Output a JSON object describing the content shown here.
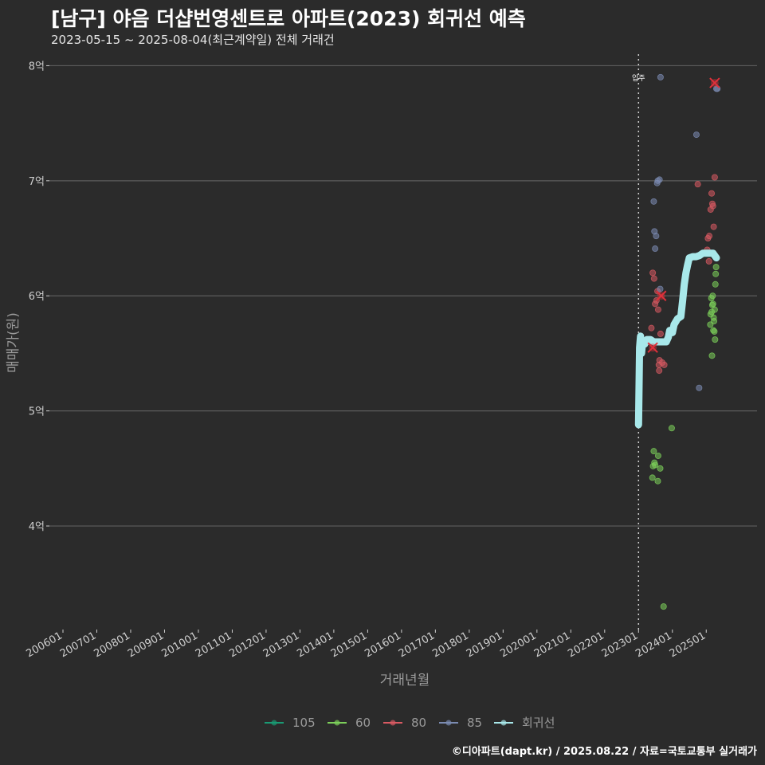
{
  "header": {
    "title": "[남구] 야음 더샵번영센트로 아파트(2023) 회귀선 예측",
    "subtitle": "2023-05-15 ~ 2025-08-04(최근계약일) 전체 거래건"
  },
  "caption": "©디아파트(dapt.kr) / 2025.08.22 / 자료=국토교통부 실거래가",
  "colors": {
    "background": "#2b2b2b",
    "grid": "#5c5c5c",
    "s105": "#1a9a74",
    "s60": "#7ccf5a",
    "s80": "#d85a62",
    "s85": "#7b8bb2",
    "regression": "#a8e8ea",
    "marker": "#e0303a"
  },
  "chart_data": {
    "type": "scatter",
    "title": "[남구] 야음 더샵번영센트로 아파트(2023) 회귀선 예측",
    "xlabel": "거래년월",
    "ylabel": "매매가(원)",
    "xlim": [
      2005.6,
      2026.5
    ],
    "ylim": [
      3.1,
      8.1
    ],
    "x_ticks": [
      {
        "label": "200601",
        "x": 2006.0
      },
      {
        "label": "200701",
        "x": 2007.0
      },
      {
        "label": "200801",
        "x": 2008.0
      },
      {
        "label": "200901",
        "x": 2009.0
      },
      {
        "label": "201001",
        "x": 2010.0
      },
      {
        "label": "201101",
        "x": 2011.0
      },
      {
        "label": "201201",
        "x": 2012.0
      },
      {
        "label": "201301",
        "x": 2013.0
      },
      {
        "label": "201401",
        "x": 2014.0
      },
      {
        "label": "201501",
        "x": 2015.0
      },
      {
        "label": "201601",
        "x": 2016.0
      },
      {
        "label": "201701",
        "x": 2017.0
      },
      {
        "label": "201801",
        "x": 2018.0
      },
      {
        "label": "201901",
        "x": 2019.0
      },
      {
        "label": "202001",
        "x": 2020.0
      },
      {
        "label": "202101",
        "x": 2021.0
      },
      {
        "label": "202201",
        "x": 2022.0
      },
      {
        "label": "202301",
        "x": 2023.0
      },
      {
        "label": "202401",
        "x": 2024.0
      },
      {
        "label": "202501",
        "x": 2025.0
      }
    ],
    "y_ticks": [
      {
        "label": "4억",
        "y": 4
      },
      {
        "label": "5억",
        "y": 5
      },
      {
        "label": "6억",
        "y": 6
      },
      {
        "label": "7억",
        "y": 7
      },
      {
        "label": "8억",
        "y": 8
      }
    ],
    "move_in": {
      "label": "입주",
      "x": 2023.0
    },
    "series": [
      {
        "name": "105",
        "color": "#1a9a74",
        "points": []
      },
      {
        "name": "60",
        "color": "#7ccf5a",
        "points": [
          [
            2023.41,
            4.42
          ],
          [
            2023.43,
            4.52
          ],
          [
            2023.45,
            4.65
          ],
          [
            2023.47,
            4.55
          ],
          [
            2023.49,
            4.53
          ],
          [
            2023.57,
            4.39
          ],
          [
            2023.58,
            4.61
          ],
          [
            2023.64,
            4.5
          ],
          [
            2023.74,
            3.3
          ],
          [
            2023.98,
            4.85
          ],
          [
            2025.17,
            5.48
          ],
          [
            2025.12,
            5.75
          ],
          [
            2025.18,
            5.92
          ],
          [
            2025.21,
            5.7
          ],
          [
            2025.23,
            5.78
          ],
          [
            2025.25,
            5.88
          ],
          [
            2025.26,
            5.62
          ],
          [
            2025.13,
            5.84
          ],
          [
            2025.15,
            5.98
          ],
          [
            2025.19,
            6.0
          ],
          [
            2025.22,
            5.81
          ],
          [
            2025.27,
            6.1
          ],
          [
            2025.28,
            6.19
          ],
          [
            2025.29,
            6.25
          ],
          [
            2025.16,
            5.86
          ],
          [
            2025.2,
            5.93
          ],
          [
            2025.24,
            5.69
          ]
        ]
      },
      {
        "name": "80",
        "color": "#d85a62",
        "points": [
          [
            2023.38,
            5.72
          ],
          [
            2023.42,
            6.2
          ],
          [
            2023.46,
            6.15
          ],
          [
            2023.49,
            5.93
          ],
          [
            2023.53,
            5.96
          ],
          [
            2023.56,
            6.04
          ],
          [
            2023.58,
            5.88
          ],
          [
            2023.6,
            5.4
          ],
          [
            2023.61,
            5.35
          ],
          [
            2023.62,
            5.44
          ],
          [
            2023.65,
            5.67
          ],
          [
            2023.7,
            5.42
          ],
          [
            2023.76,
            5.4
          ],
          [
            2024.75,
            6.97
          ],
          [
            2025.05,
            6.5
          ],
          [
            2025.09,
            6.52
          ],
          [
            2025.13,
            6.75
          ],
          [
            2025.16,
            6.89
          ],
          [
            2025.18,
            6.8
          ],
          [
            2025.2,
            6.78
          ],
          [
            2025.22,
            6.6
          ],
          [
            2025.25,
            7.03
          ],
          [
            2025.08,
            6.3
          ],
          [
            2025.03,
            6.4
          ]
        ]
      },
      {
        "name": "85",
        "color": "#7b8bb2",
        "points": [
          [
            2023.45,
            6.82
          ],
          [
            2023.47,
            6.56
          ],
          [
            2023.49,
            6.41
          ],
          [
            2023.52,
            6.52
          ],
          [
            2023.55,
            6.98
          ],
          [
            2023.57,
            7.0
          ],
          [
            2023.62,
            7.01
          ],
          [
            2023.65,
            7.9
          ],
          [
            2023.64,
            6.06
          ],
          [
            2024.71,
            7.4
          ],
          [
            2024.79,
            5.2
          ],
          [
            2025.3,
            7.8
          ],
          [
            2025.33,
            7.8
          ]
        ]
      }
    ],
    "highlighted": [
      [
        2023.42,
        5.55
      ],
      [
        2023.67,
        6.0
      ],
      [
        2025.25,
        7.85
      ]
    ],
    "regression": {
      "name": "회귀선",
      "points": [
        [
          2023.0,
          4.88
        ],
        [
          2023.03,
          5.55
        ],
        [
          2023.06,
          5.65
        ],
        [
          2023.09,
          5.5
        ],
        [
          2023.12,
          5.6
        ],
        [
          2023.18,
          5.58
        ],
        [
          2023.25,
          5.62
        ],
        [
          2023.35,
          5.62
        ],
        [
          2023.45,
          5.6
        ],
        [
          2023.55,
          5.6
        ],
        [
          2023.65,
          5.6
        ],
        [
          2023.75,
          5.6
        ],
        [
          2023.82,
          5.6
        ],
        [
          2023.88,
          5.64
        ],
        [
          2023.92,
          5.7
        ],
        [
          2024.0,
          5.68
        ],
        [
          2024.05,
          5.75
        ],
        [
          2024.15,
          5.8
        ],
        [
          2024.25,
          5.82
        ],
        [
          2024.3,
          5.95
        ],
        [
          2024.35,
          6.1
        ],
        [
          2024.4,
          6.2
        ],
        [
          2024.45,
          6.27
        ],
        [
          2024.5,
          6.33
        ],
        [
          2024.6,
          6.34
        ],
        [
          2024.7,
          6.34
        ],
        [
          2024.8,
          6.35
        ],
        [
          2024.9,
          6.37
        ],
        [
          2025.0,
          6.37
        ],
        [
          2025.1,
          6.37
        ],
        [
          2025.2,
          6.37
        ],
        [
          2025.3,
          6.33
        ]
      ]
    },
    "legend": [
      "105",
      "60",
      "80",
      "85",
      "회귀선"
    ],
    "legend_position": "bottom"
  }
}
